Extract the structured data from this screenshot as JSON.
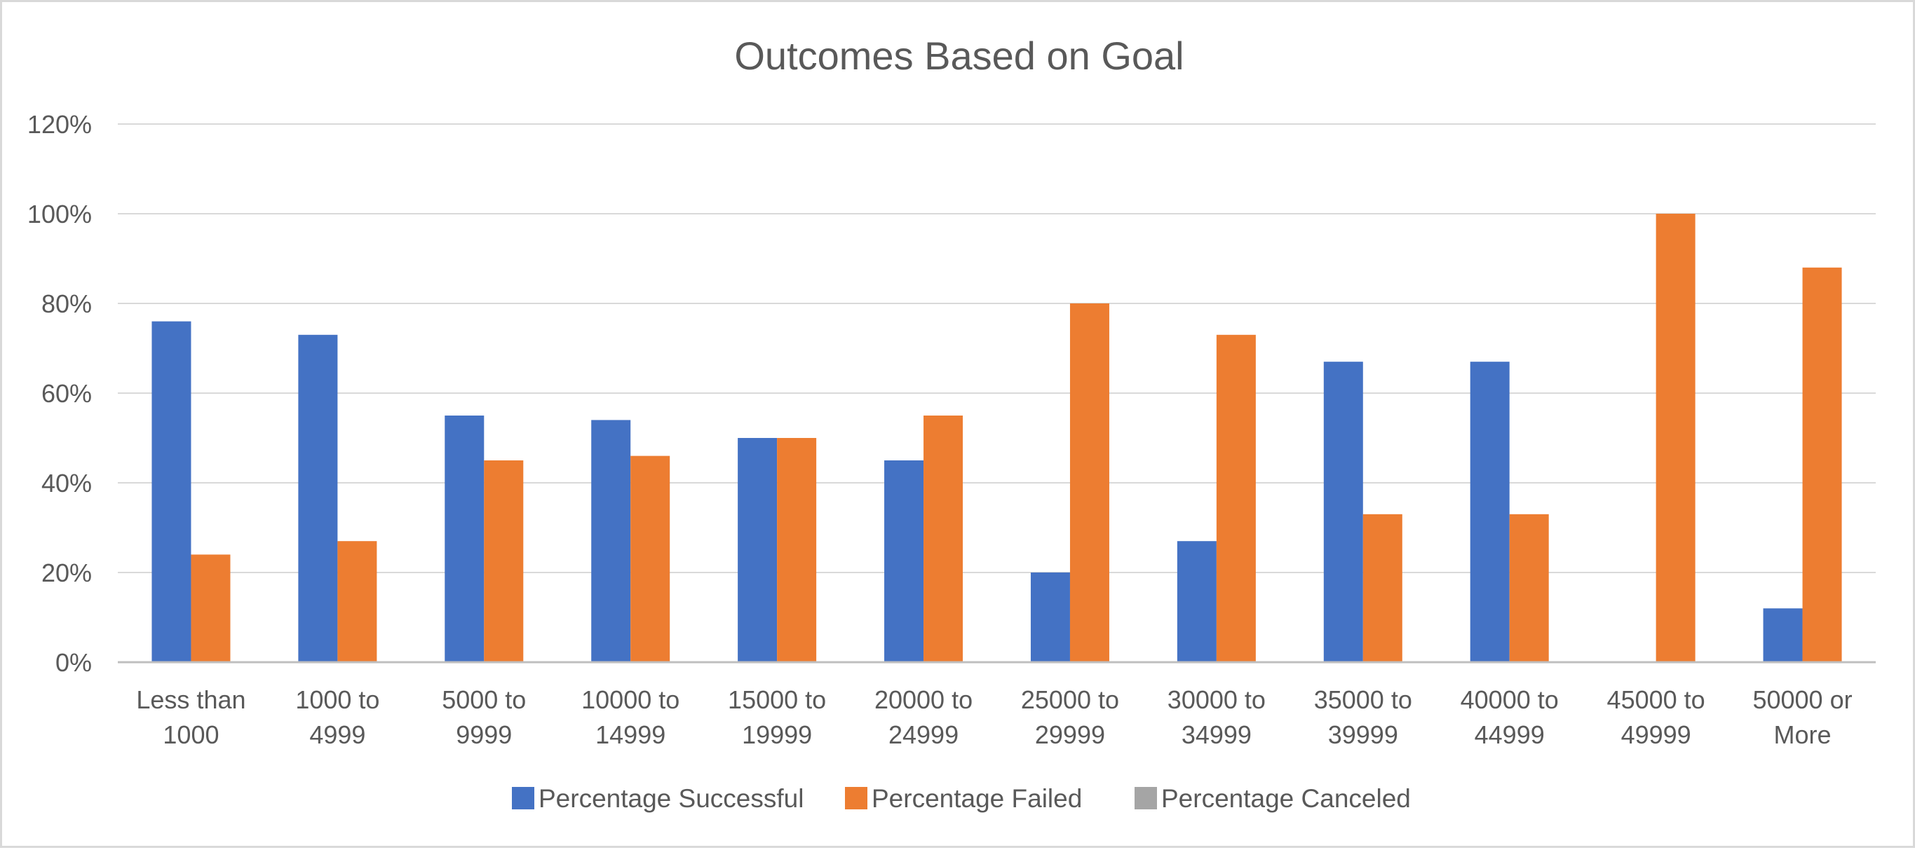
{
  "chart_data": {
    "type": "bar",
    "title": "Outcomes Based on Goal",
    "xlabel": "",
    "ylabel": "",
    "ylim": [
      0,
      120
    ],
    "yticks": [
      "0%",
      "20%",
      "40%",
      "60%",
      "80%",
      "100%",
      "120%"
    ],
    "grid": true,
    "legend_position": "bottom",
    "categories": [
      [
        "Less than",
        "1000"
      ],
      [
        "1000 to",
        "4999"
      ],
      [
        "5000 to",
        "9999"
      ],
      [
        "10000 to",
        "14999"
      ],
      [
        "15000 to",
        "19999"
      ],
      [
        "20000 to",
        "24999"
      ],
      [
        "25000 to",
        "29999"
      ],
      [
        "30000 to",
        "34999"
      ],
      [
        "35000 to",
        "39999"
      ],
      [
        "40000 to",
        "44999"
      ],
      [
        "45000 to",
        "49999"
      ],
      [
        "50000 or",
        "More"
      ]
    ],
    "series": [
      {
        "name": "Percentage Successful",
        "color": "#4472c4",
        "values": [
          76,
          73,
          55,
          54,
          50,
          45,
          20,
          27,
          67,
          67,
          0,
          12
        ]
      },
      {
        "name": "Percentage Failed",
        "color": "#ed7d31",
        "values": [
          24,
          27,
          45,
          46,
          50,
          55,
          80,
          73,
          33,
          33,
          100,
          88
        ]
      },
      {
        "name": "Percentage Canceled",
        "color": "#a5a5a5",
        "values": [
          0,
          0,
          0,
          0,
          0,
          0,
          0,
          0,
          0,
          0,
          0,
          0
        ]
      }
    ]
  }
}
